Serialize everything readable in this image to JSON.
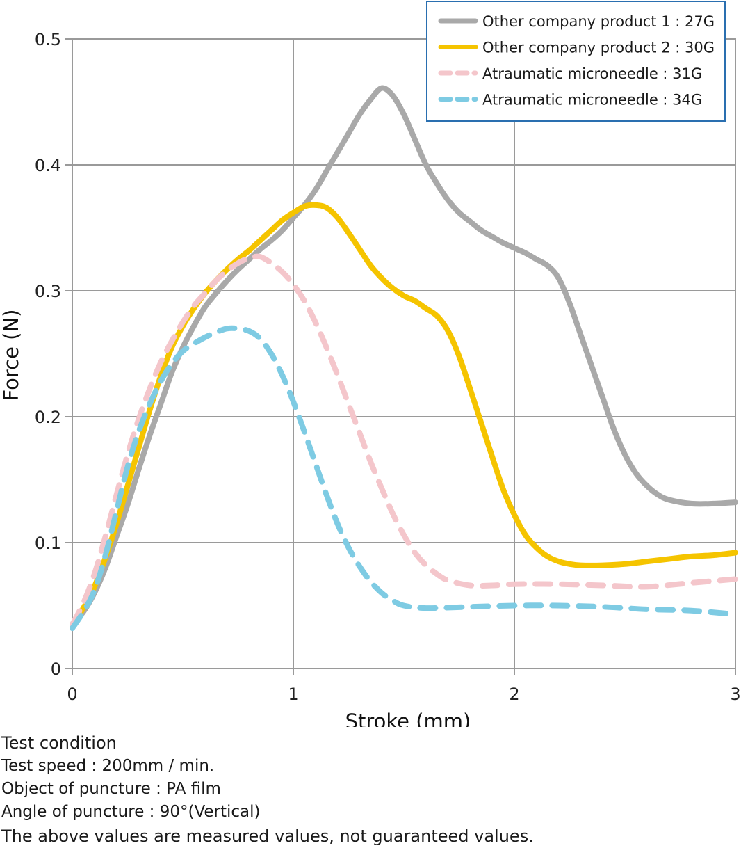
{
  "chart_data": {
    "type": "line",
    "xlabel": "Stroke (mm)",
    "ylabel": "Force (N)",
    "xlim": [
      0,
      3
    ],
    "ylim": [
      0,
      0.5
    ],
    "x_ticks": [
      0,
      1,
      2,
      3
    ],
    "x_tick_labels": [
      "0",
      "1",
      "2",
      "3"
    ],
    "y_ticks": [
      0,
      0.1,
      0.2,
      0.3,
      0.4,
      0.5
    ],
    "y_tick_labels": [
      "0",
      "0.1",
      "0.2",
      "0.3",
      "0.4",
      "0.5"
    ],
    "grid": true,
    "legend_position": "top-right",
    "series": [
      {
        "name": "Other company product 1 : 27G",
        "color": "#a9a9a9",
        "style": "solid",
        "points": [
          [
            0,
            0.035
          ],
          [
            0.05,
            0.045
          ],
          [
            0.1,
            0.06
          ],
          [
            0.15,
            0.08
          ],
          [
            0.2,
            0.105
          ],
          [
            0.25,
            0.13
          ],
          [
            0.3,
            0.158
          ],
          [
            0.35,
            0.185
          ],
          [
            0.4,
            0.21
          ],
          [
            0.45,
            0.235
          ],
          [
            0.5,
            0.255
          ],
          [
            0.55,
            0.272
          ],
          [
            0.6,
            0.287
          ],
          [
            0.65,
            0.298
          ],
          [
            0.7,
            0.308
          ],
          [
            0.75,
            0.317
          ],
          [
            0.8,
            0.325
          ],
          [
            0.85,
            0.333
          ],
          [
            0.9,
            0.34
          ],
          [
            0.95,
            0.348
          ],
          [
            1.0,
            0.358
          ],
          [
            1.05,
            0.368
          ],
          [
            1.1,
            0.38
          ],
          [
            1.15,
            0.395
          ],
          [
            1.2,
            0.41
          ],
          [
            1.25,
            0.425
          ],
          [
            1.3,
            0.44
          ],
          [
            1.35,
            0.452
          ],
          [
            1.4,
            0.461
          ],
          [
            1.45,
            0.455
          ],
          [
            1.5,
            0.44
          ],
          [
            1.55,
            0.42
          ],
          [
            1.6,
            0.4
          ],
          [
            1.65,
            0.385
          ],
          [
            1.7,
            0.372
          ],
          [
            1.75,
            0.362
          ],
          [
            1.8,
            0.355
          ],
          [
            1.85,
            0.348
          ],
          [
            1.9,
            0.343
          ],
          [
            1.95,
            0.338
          ],
          [
            2.0,
            0.334
          ],
          [
            2.05,
            0.33
          ],
          [
            2.1,
            0.325
          ],
          [
            2.15,
            0.32
          ],
          [
            2.2,
            0.31
          ],
          [
            2.25,
            0.29
          ],
          [
            2.3,
            0.265
          ],
          [
            2.35,
            0.24
          ],
          [
            2.4,
            0.215
          ],
          [
            2.45,
            0.19
          ],
          [
            2.5,
            0.17
          ],
          [
            2.55,
            0.155
          ],
          [
            2.6,
            0.145
          ],
          [
            2.65,
            0.138
          ],
          [
            2.7,
            0.134
          ],
          [
            2.8,
            0.131
          ],
          [
            2.9,
            0.131
          ],
          [
            3.0,
            0.132
          ]
        ]
      },
      {
        "name": "Other company product 2 : 30G",
        "color": "#f5c400",
        "style": "solid",
        "points": [
          [
            0,
            0.035
          ],
          [
            0.05,
            0.048
          ],
          [
            0.1,
            0.065
          ],
          [
            0.15,
            0.088
          ],
          [
            0.2,
            0.115
          ],
          [
            0.25,
            0.145
          ],
          [
            0.3,
            0.175
          ],
          [
            0.35,
            0.205
          ],
          [
            0.4,
            0.232
          ],
          [
            0.45,
            0.255
          ],
          [
            0.5,
            0.272
          ],
          [
            0.55,
            0.286
          ],
          [
            0.6,
            0.298
          ],
          [
            0.65,
            0.308
          ],
          [
            0.7,
            0.317
          ],
          [
            0.75,
            0.325
          ],
          [
            0.8,
            0.332
          ],
          [
            0.85,
            0.34
          ],
          [
            0.9,
            0.348
          ],
          [
            0.95,
            0.356
          ],
          [
            1.0,
            0.362
          ],
          [
            1.05,
            0.367
          ],
          [
            1.1,
            0.368
          ],
          [
            1.15,
            0.366
          ],
          [
            1.2,
            0.358
          ],
          [
            1.25,
            0.346
          ],
          [
            1.3,
            0.333
          ],
          [
            1.35,
            0.32
          ],
          [
            1.4,
            0.31
          ],
          [
            1.45,
            0.302
          ],
          [
            1.5,
            0.296
          ],
          [
            1.55,
            0.292
          ],
          [
            1.6,
            0.286
          ],
          [
            1.65,
            0.28
          ],
          [
            1.7,
            0.268
          ],
          [
            1.75,
            0.248
          ],
          [
            1.8,
            0.222
          ],
          [
            1.85,
            0.195
          ],
          [
            1.9,
            0.168
          ],
          [
            1.95,
            0.142
          ],
          [
            2.0,
            0.122
          ],
          [
            2.05,
            0.106
          ],
          [
            2.1,
            0.096
          ],
          [
            2.15,
            0.089
          ],
          [
            2.2,
            0.085
          ],
          [
            2.25,
            0.083
          ],
          [
            2.3,
            0.082
          ],
          [
            2.4,
            0.082
          ],
          [
            2.5,
            0.083
          ],
          [
            2.6,
            0.085
          ],
          [
            2.7,
            0.087
          ],
          [
            2.8,
            0.089
          ],
          [
            2.9,
            0.09
          ],
          [
            3.0,
            0.092
          ]
        ]
      },
      {
        "name": "Atraumatic microneedle : 31G",
        "color": "#f4c6cb",
        "style": "dashed",
        "points": [
          [
            0,
            0.035
          ],
          [
            0.05,
            0.052
          ],
          [
            0.1,
            0.075
          ],
          [
            0.15,
            0.105
          ],
          [
            0.2,
            0.138
          ],
          [
            0.25,
            0.17
          ],
          [
            0.3,
            0.198
          ],
          [
            0.35,
            0.222
          ],
          [
            0.4,
            0.243
          ],
          [
            0.45,
            0.26
          ],
          [
            0.5,
            0.275
          ],
          [
            0.55,
            0.288
          ],
          [
            0.6,
            0.298
          ],
          [
            0.65,
            0.308
          ],
          [
            0.7,
            0.316
          ],
          [
            0.75,
            0.322
          ],
          [
            0.8,
            0.326
          ],
          [
            0.85,
            0.327
          ],
          [
            0.9,
            0.322
          ],
          [
            0.95,
            0.315
          ],
          [
            1.0,
            0.305
          ],
          [
            1.05,
            0.292
          ],
          [
            1.1,
            0.275
          ],
          [
            1.15,
            0.255
          ],
          [
            1.2,
            0.233
          ],
          [
            1.25,
            0.21
          ],
          [
            1.3,
            0.187
          ],
          [
            1.35,
            0.164
          ],
          [
            1.4,
            0.143
          ],
          [
            1.45,
            0.123
          ],
          [
            1.5,
            0.106
          ],
          [
            1.55,
            0.092
          ],
          [
            1.6,
            0.082
          ],
          [
            1.65,
            0.075
          ],
          [
            1.7,
            0.07
          ],
          [
            1.8,
            0.066
          ],
          [
            1.9,
            0.066
          ],
          [
            2.0,
            0.067
          ],
          [
            2.2,
            0.067
          ],
          [
            2.4,
            0.066
          ],
          [
            2.6,
            0.065
          ],
          [
            2.8,
            0.068
          ],
          [
            3.0,
            0.071
          ]
        ]
      },
      {
        "name": "Atraumatic microneedle : 34G",
        "color": "#7ecbe3",
        "style": "dashed",
        "points": [
          [
            0,
            0.032
          ],
          [
            0.05,
            0.045
          ],
          [
            0.1,
            0.062
          ],
          [
            0.15,
            0.09
          ],
          [
            0.2,
            0.125
          ],
          [
            0.25,
            0.16
          ],
          [
            0.3,
            0.188
          ],
          [
            0.35,
            0.21
          ],
          [
            0.4,
            0.228
          ],
          [
            0.45,
            0.242
          ],
          [
            0.5,
            0.252
          ],
          [
            0.55,
            0.258
          ],
          [
            0.6,
            0.263
          ],
          [
            0.65,
            0.267
          ],
          [
            0.7,
            0.27
          ],
          [
            0.75,
            0.27
          ],
          [
            0.8,
            0.268
          ],
          [
            0.85,
            0.262
          ],
          [
            0.9,
            0.25
          ],
          [
            0.95,
            0.233
          ],
          [
            1.0,
            0.212
          ],
          [
            1.05,
            0.188
          ],
          [
            1.1,
            0.163
          ],
          [
            1.15,
            0.138
          ],
          [
            1.2,
            0.115
          ],
          [
            1.25,
            0.096
          ],
          [
            1.3,
            0.081
          ],
          [
            1.35,
            0.069
          ],
          [
            1.4,
            0.06
          ],
          [
            1.45,
            0.054
          ],
          [
            1.5,
            0.05
          ],
          [
            1.6,
            0.048
          ],
          [
            1.8,
            0.049
          ],
          [
            2.0,
            0.05
          ],
          [
            2.2,
            0.05
          ],
          [
            2.4,
            0.049
          ],
          [
            2.6,
            0.047
          ],
          [
            2.8,
            0.046
          ],
          [
            3.0,
            0.043
          ]
        ]
      }
    ]
  },
  "notes": {
    "title": "Test condition",
    "lines": [
      "Test speed : 200mm / min.",
      "Object of puncture : PA film",
      "Angle of puncture : 90°(Vertical)"
    ],
    "disclaimer": "The above values are measured values, not guaranteed values."
  }
}
